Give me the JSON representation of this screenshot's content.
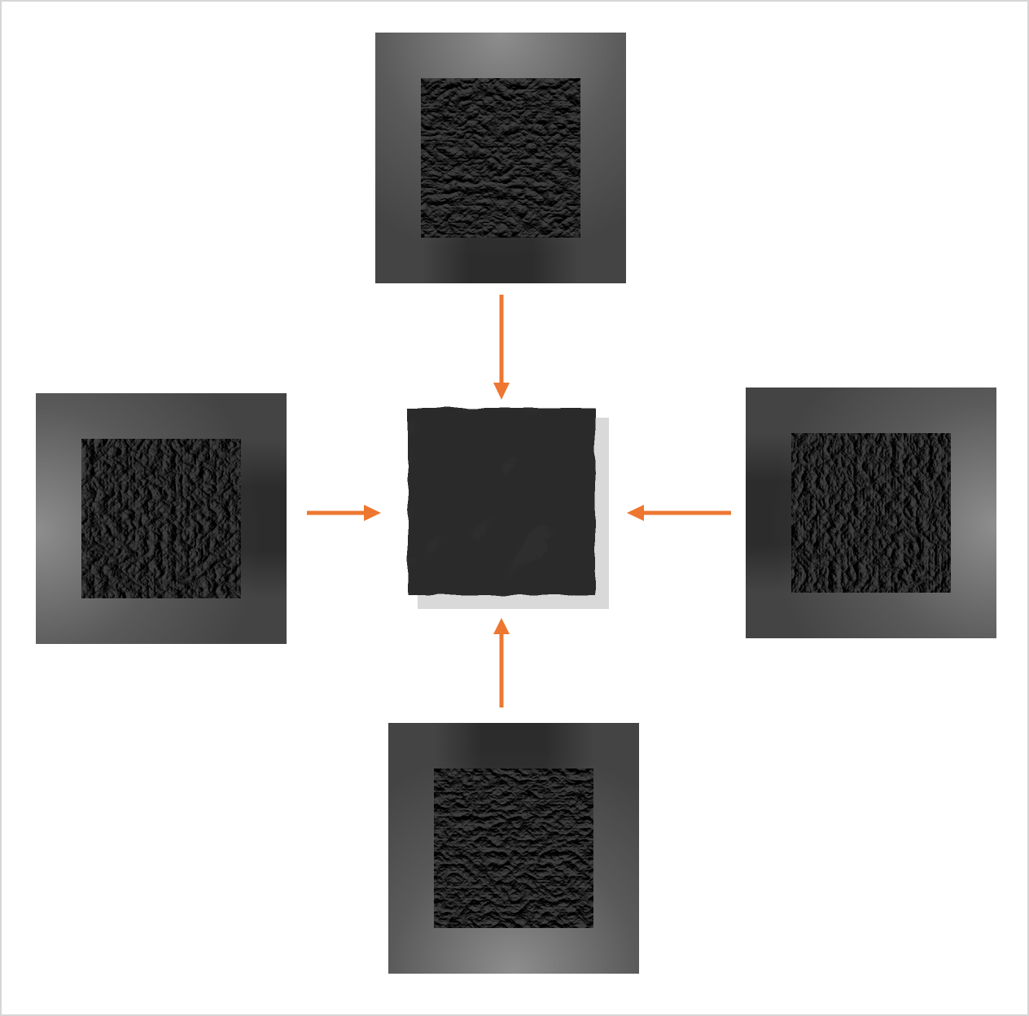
{
  "diagram": {
    "kind": "four-input-merge",
    "arrow_color": "#ed7730",
    "panel_bg_color": "#4f4f4f",
    "texture_color": "#5e5e5e",
    "result_color": "#6a6a6a",
    "result_shadow_color": "#d9d9d9",
    "inputs": [
      {
        "id": "top",
        "lighting": "light-from-top"
      },
      {
        "id": "left",
        "lighting": "light-from-left"
      },
      {
        "id": "right",
        "lighting": "light-from-right"
      },
      {
        "id": "bottom",
        "lighting": "light-from-bottom"
      }
    ],
    "output": {
      "id": "combined-surface"
    }
  }
}
